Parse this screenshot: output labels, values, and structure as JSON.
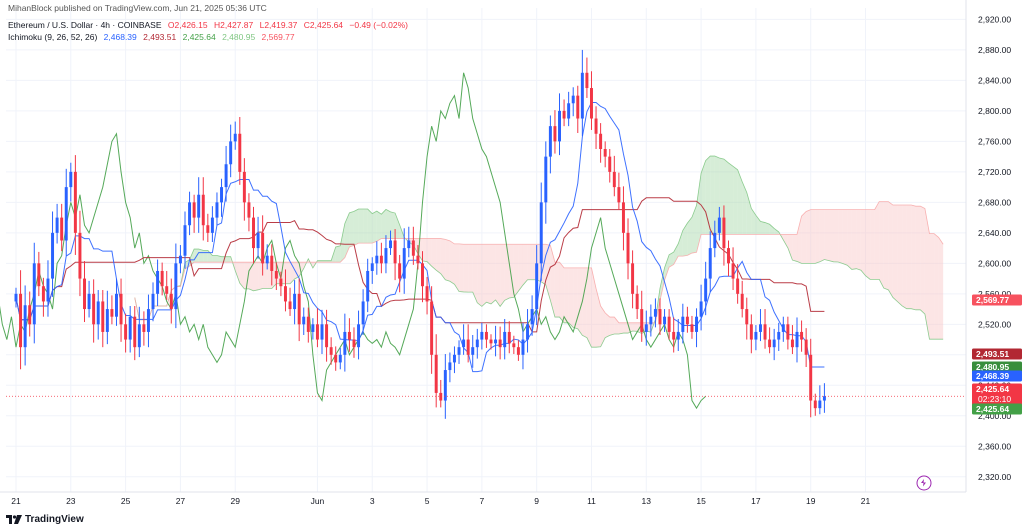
{
  "publisher": "MihanBlock published on TradingView.com, Jun 21, 2025 05:36 UTC",
  "symbol": {
    "title": "Ethereum / U.S. Dollar · 4h · COINBASE",
    "open": "O2,426.15",
    "high": "H2,427.87",
    "low": "L2,419.37",
    "close": "C2,425.64",
    "change": "−0.49 (−0.02%)"
  },
  "indicator": {
    "name": "Ichimoku (9, 26, 52, 26)",
    "values": [
      "2,468.39",
      "2,493.51",
      "2,425.64",
      "2,480.95",
      "2,569.77"
    ],
    "colors": [
      "#2962FF",
      "#B22833",
      "#43A047",
      "#388E3C",
      "#F7525F"
    ]
  },
  "brand": "TradingView",
  "colors": {
    "up": "#2962FF",
    "down": "#F23645",
    "tenkan": "#2962FF",
    "kijun": "#B22833",
    "chikou": "#43A047",
    "cloud_green": "#A5D6A7",
    "cloud_red": "#F8C6C6",
    "grid": "#F0F3FA",
    "axis_text": "#131722"
  },
  "price_badges": [
    {
      "value": "2,569.77",
      "bg": "#F7525F",
      "fg": "#ffffff"
    },
    {
      "value": "2,493.51",
      "bg": "#B22833",
      "fg": "#ffffff"
    },
    {
      "value": "2,480.95",
      "bg": "#388E3C",
      "fg": "#ffffff"
    },
    {
      "value": "2,468.39",
      "bg": "#2962FF",
      "fg": "#ffffff"
    },
    {
      "value": "2,425.64",
      "bg": "#F23645",
      "fg": "#ffffff",
      "sub": "02:23:10"
    },
    {
      "value": "2,425.64",
      "bg": "#43A047",
      "fg": "#ffffff"
    }
  ],
  "chart_data": {
    "type": "candlestick",
    "timeframe": "4h",
    "ylim": [
      2300,
      2935
    ],
    "y_ticks": [
      {
        "v": 2320,
        "label": "2,320.00"
      },
      {
        "v": 2360,
        "label": "2,360.00"
      },
      {
        "v": 2400,
        "label": "2,400.00"
      },
      {
        "v": 2440,
        "label": "2,440.00"
      },
      {
        "v": 2480,
        "label": "2,480.00"
      },
      {
        "v": 2520,
        "label": "2,520.00"
      },
      {
        "v": 2560,
        "label": "2,560.00"
      },
      {
        "v": 2600,
        "label": "2,600.00"
      },
      {
        "v": 2640,
        "label": "2,640.00"
      },
      {
        "v": 2680,
        "label": "2,680.00"
      },
      {
        "v": 2720,
        "label": "2,720.00"
      },
      {
        "v": 2760,
        "label": "2,760.00"
      },
      {
        "v": 2800,
        "label": "2,800.00"
      },
      {
        "v": 2840,
        "label": "2,840.00"
      },
      {
        "v": 2880,
        "label": "2,880.00"
      },
      {
        "v": 2920,
        "label": "2,920.00"
      }
    ],
    "x_ticks": [
      {
        "i": 0,
        "label": "21"
      },
      {
        "i": 12,
        "label": "23"
      },
      {
        "i": 24,
        "label": "25"
      },
      {
        "i": 36,
        "label": "27"
      },
      {
        "i": 48,
        "label": "29"
      },
      {
        "i": 66,
        "label": "Jun"
      },
      {
        "i": 78,
        "label": "3"
      },
      {
        "i": 90,
        "label": "5"
      },
      {
        "i": 102,
        "label": "7"
      },
      {
        "i": 114,
        "label": "9"
      },
      {
        "i": 126,
        "label": "11"
      },
      {
        "i": 138,
        "label": "13"
      },
      {
        "i": 150,
        "label": "15"
      },
      {
        "i": 162,
        "label": "17"
      },
      {
        "i": 174,
        "label": "19"
      },
      {
        "i": 186,
        "label": "21"
      }
    ],
    "last_price": 2425.64,
    "grid": true,
    "closes": [
      2560,
      2490,
      2545,
      2520,
      2600,
      2570,
      2550,
      2580,
      2640,
      2660,
      2630,
      2700,
      2720,
      2640,
      2580,
      2540,
      2560,
      2520,
      2550,
      2510,
      2540,
      2530,
      2560,
      2520,
      2500,
      2530,
      2490,
      2520,
      2510,
      2540,
      2560,
      2590,
      2570,
      2560,
      2540,
      2600,
      2610,
      2650,
      2680,
      2660,
      2690,
      2650,
      2640,
      2660,
      2680,
      2700,
      2730,
      2760,
      2770,
      2720,
      2680,
      2660,
      2620,
      2640,
      2600,
      2610,
      2590,
      2580,
      2570,
      2550,
      2540,
      2560,
      2520,
      2530,
      2510,
      2520,
      2500,
      2520,
      2490,
      2480,
      2470,
      2480,
      2510,
      2500,
      2490,
      2520,
      2550,
      2590,
      2600,
      2610,
      2600,
      2620,
      2630,
      2600,
      2580,
      2620,
      2630,
      2610,
      2600,
      2570,
      2550,
      2480,
      2430,
      2420,
      2460,
      2470,
      2480,
      2490,
      2500,
      2480,
      2490,
      2500,
      2510,
      2500,
      2495,
      2500,
      2490,
      2510,
      2495,
      2490,
      2480,
      2500,
      2520,
      2540,
      2600,
      2680,
      2740,
      2780,
      2760,
      2800,
      2790,
      2810,
      2820,
      2790,
      2850,
      2830,
      2790,
      2770,
      2750,
      2740,
      2720,
      2700,
      2680,
      2640,
      2600,
      2560,
      2540,
      2510,
      2520,
      2530,
      2540,
      2520,
      2530,
      2510,
      2500,
      2510,
      2530,
      2520,
      2510,
      2530,
      2550,
      2580,
      2620,
      2640,
      2660,
      2620,
      2600,
      2580,
      2560,
      2540,
      2520,
      2500,
      2510,
      2520,
      2500,
      2490,
      2500,
      2510,
      2520,
      2500,
      2490,
      2510,
      2500,
      2480,
      2420,
      2410,
      2420,
      2425.64
    ]
  }
}
